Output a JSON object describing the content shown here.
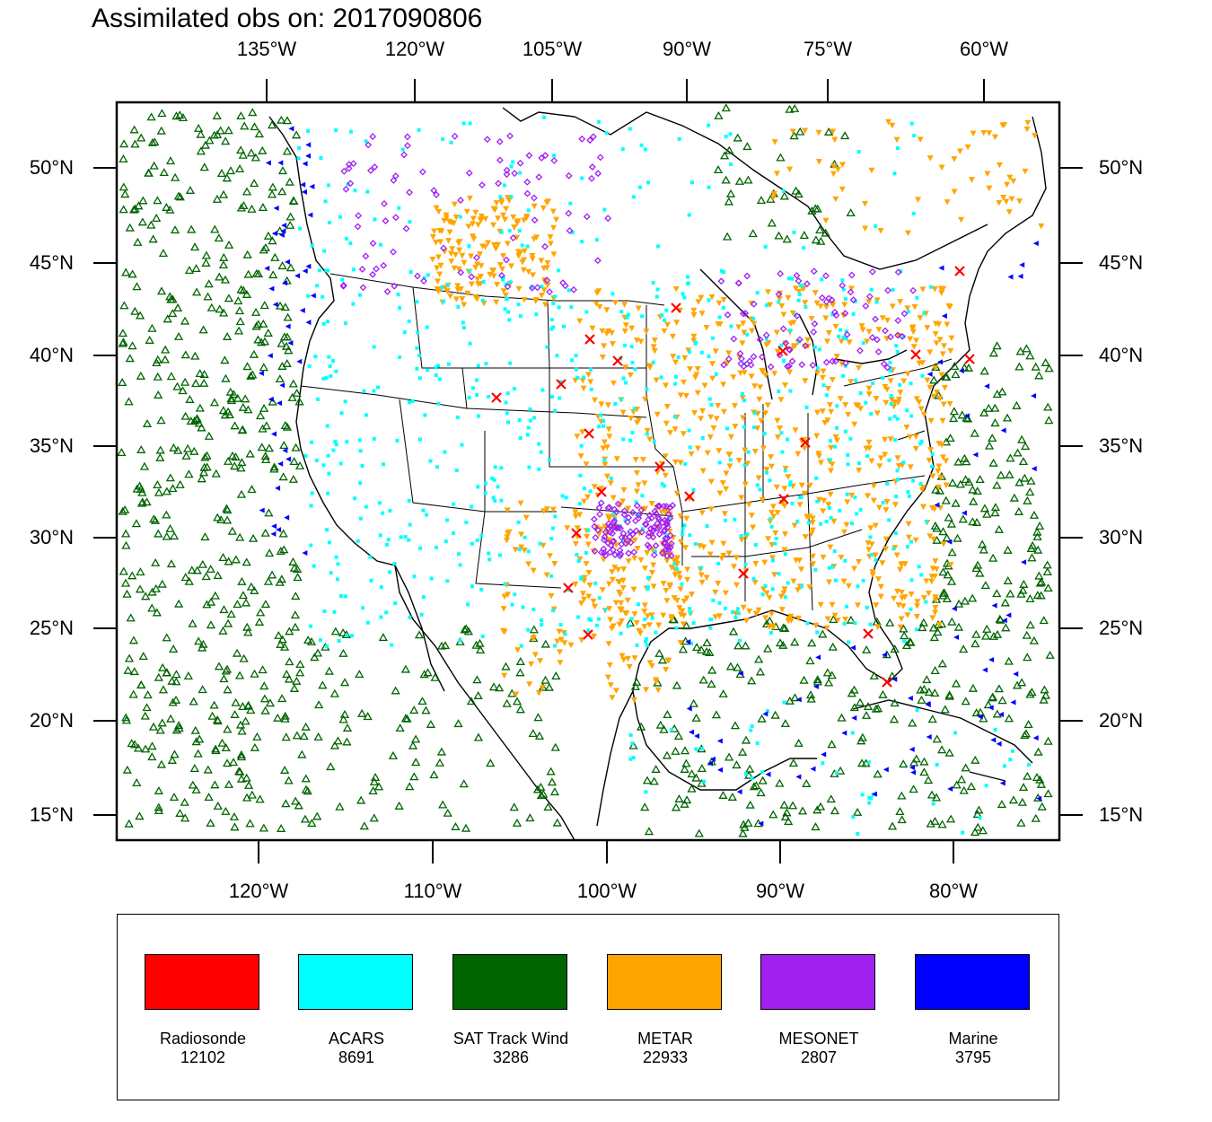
{
  "title": "Assimilated obs on: 2017090806",
  "axes": {
    "top_ticks": [
      "135°W",
      "120°W",
      "105°W",
      "90°W",
      "75°W",
      "60°W"
    ],
    "bottom_ticks": [
      "120°W",
      "110°W",
      "100°W",
      "90°W",
      "80°W"
    ],
    "left_ticks": [
      "50°N",
      "45°N",
      "40°N",
      "35°N",
      "30°N",
      "25°N",
      "20°N",
      "15°N"
    ],
    "right_ticks": [
      "50°N",
      "45°N",
      "40°N",
      "35°N",
      "30°N",
      "25°N",
      "20°N",
      "15°N"
    ]
  },
  "legend": [
    {
      "name": "Radiosonde",
      "count": "12102",
      "color": "#ff0000",
      "icon": "x-marker"
    },
    {
      "name": "ACARS",
      "count": "8691",
      "color": "#00ffff",
      "icon": "square-marker"
    },
    {
      "name": "SAT Track Wind",
      "count": "3286",
      "color": "#006400",
      "icon": "triangle-marker"
    },
    {
      "name": "METAR",
      "count": "22933",
      "color": "#ffa500",
      "icon": "down-triangle-marker"
    },
    {
      "name": "MESONET",
      "count": "2807",
      "color": "#a020f0",
      "icon": "diamond-marker"
    },
    {
      "name": "Marine",
      "count": "3795",
      "color": "#0000ff",
      "icon": "left-triangle-marker"
    }
  ]
}
